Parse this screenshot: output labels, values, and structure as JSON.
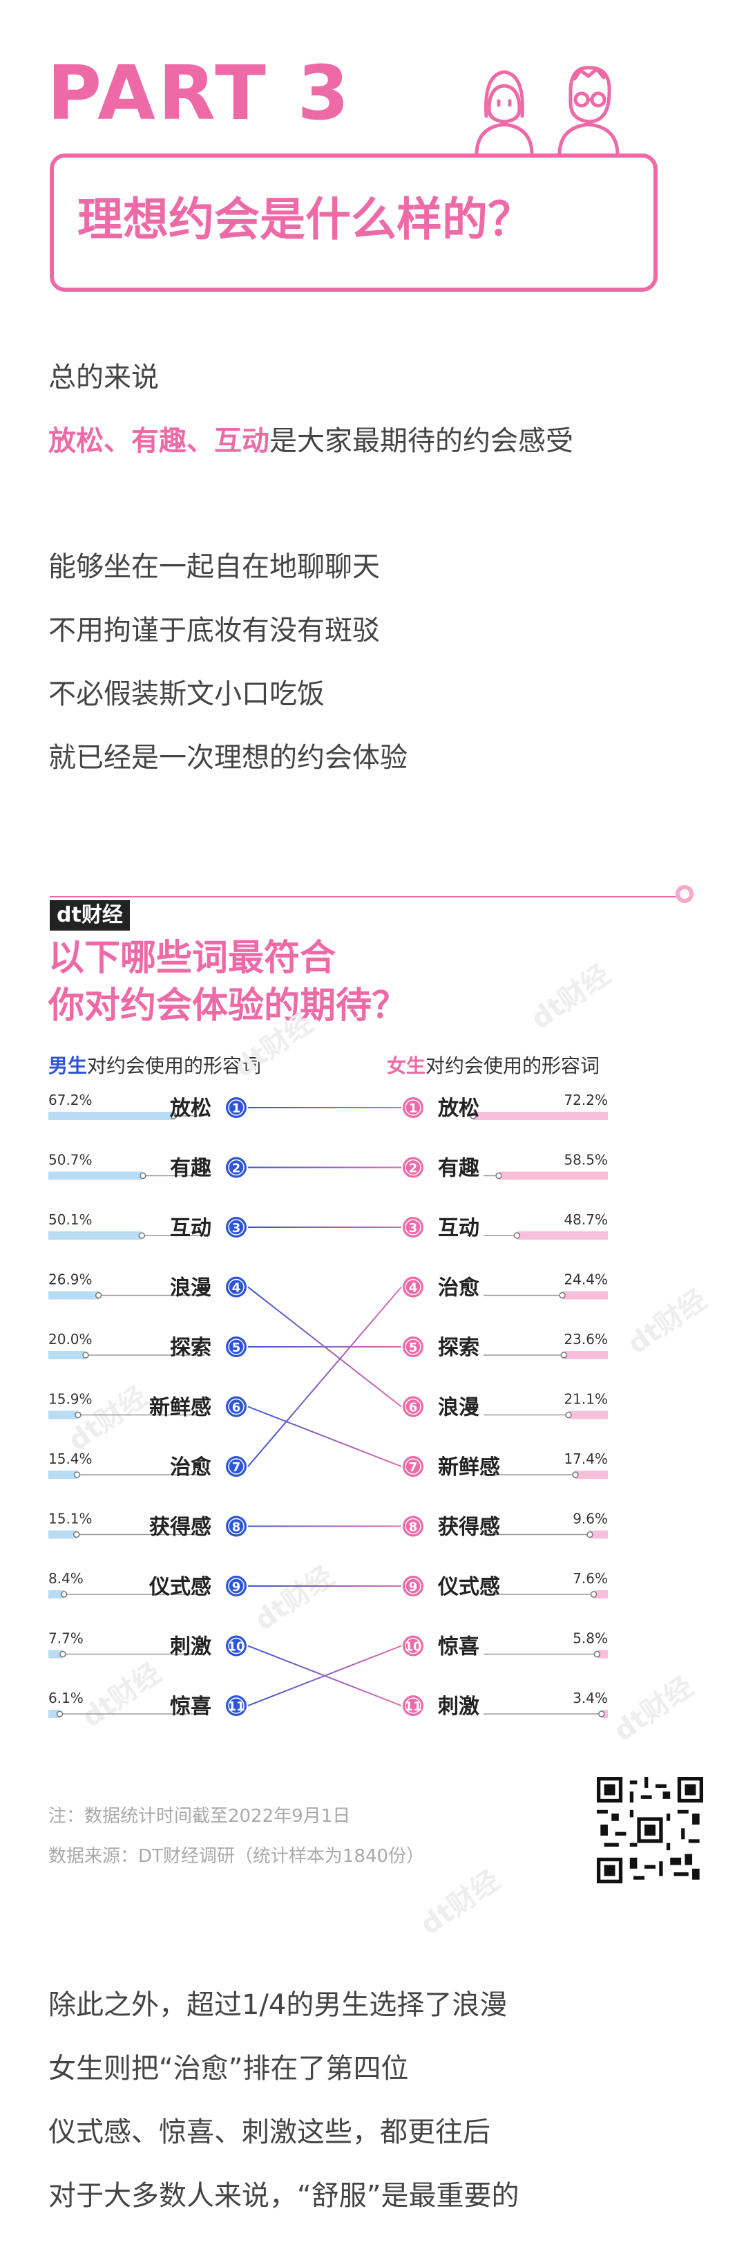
{
  "header": {
    "part": "PART 3",
    "title": "理想约会是什么样的？"
  },
  "intro": {
    "line1": "总的来说",
    "line2_highlight": "放松、有趣、互动",
    "line2_rest": "是大家最期待的约会感受",
    "lines": [
      "能够坐在一起自在地聊聊天",
      "不用拘谨于底妆有没有斑驳",
      "不必假装斯文小口吃饭",
      "就已经是一次理想的约会体验"
    ]
  },
  "infographic": {
    "brand": "dt财经",
    "question_line1": "以下哪些词最符合",
    "question_line2": "你对约会体验的期待？",
    "legend_male_highlight": "男生",
    "legend_male_rest": "对约会使用的形容词",
    "legend_female_highlight": "女生",
    "legend_female_rest": "对约会使用的形容词",
    "note": "注：数据统计时间截至2022年9月1日",
    "source": "数据来源：DT财经调研（统计样本为1840份）",
    "watermark": "dt财经"
  },
  "chart_data": {
    "type": "bar",
    "title": "以下哪些词最符合你对约会体验的期待？",
    "colors": {
      "male": "#2e55d6",
      "female": "#ee6aa7",
      "male_bar": "#b8dcf3",
      "female_bar": "#f7bfdc"
    },
    "series": [
      {
        "name": "男生",
        "ranks": [
          1,
          2,
          3,
          4,
          5,
          6,
          7,
          8,
          9,
          10,
          11
        ],
        "categories": [
          "放松",
          "有趣",
          "互动",
          "浪漫",
          "探索",
          "新鲜感",
          "治愈",
          "获得感",
          "仪式感",
          "刺激",
          "惊喜"
        ],
        "labels": [
          "67.2%",
          "50.7%",
          "50.1%",
          "26.9%",
          "20.0%",
          "15.9%",
          "15.4%",
          "15.1%",
          "8.4%",
          "7.7%",
          "6.1%"
        ],
        "values": [
          67.2,
          50.7,
          50.1,
          26.9,
          20.0,
          15.9,
          15.4,
          15.1,
          8.4,
          7.7,
          6.1
        ]
      },
      {
        "name": "女生",
        "ranks": [
          1,
          2,
          3,
          4,
          5,
          6,
          7,
          8,
          9,
          10,
          11
        ],
        "categories": [
          "放松",
          "有趣",
          "互动",
          "治愈",
          "探索",
          "浪漫",
          "新鲜感",
          "获得感",
          "仪式感",
          "惊喜",
          "刺激"
        ],
        "labels": [
          "72.2%",
          "58.5%",
          "48.7%",
          "24.4%",
          "23.6%",
          "21.1%",
          "17.4%",
          "9.6%",
          "7.6%",
          "5.8%",
          "3.4%"
        ],
        "values": [
          72.2,
          58.5,
          48.7,
          24.4,
          23.6,
          21.1,
          17.4,
          9.6,
          7.6,
          5.8,
          3.4
        ]
      }
    ]
  },
  "outro": {
    "lines": [
      "除此之外，超过1/4的男生选择了浪漫",
      "女生则把“治愈”排在了第四位",
      "仪式感、惊喜、刺激这些，都更往后",
      "对于大多数人来说，“舒服”是最重要的"
    ]
  }
}
